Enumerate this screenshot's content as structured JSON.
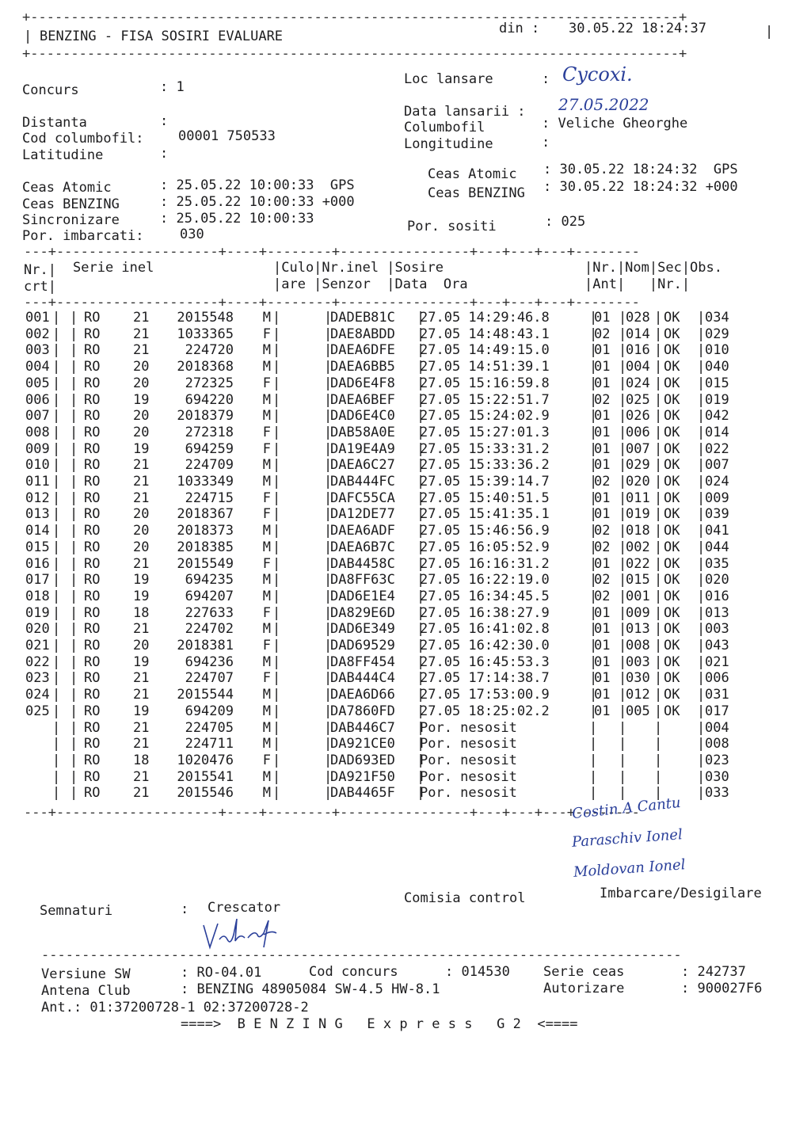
{
  "header": {
    "title": "BENZING - FISA SOSIRI EVALUARE",
    "din_label": "din :",
    "din_value": "30.05.22 18:24:37"
  },
  "info": {
    "concurs_label": "Concurs",
    "concurs_value": ": 1",
    "distanta_label": "Distanta",
    "distanta_value": ":",
    "cod_label": "Cod columbofil:",
    "cod_value": "00001 750533",
    "latitudine_label": "Latitudine",
    "latitudine_value": ":",
    "loc_label": "Loc lansare",
    "loc_colon": ":",
    "loc_value": "Cycoxi.",
    "data_lansarii_label": "Data lansarii :",
    "data_lansarii_value": "27.05.2022",
    "columbofil_label": "Columbofil",
    "columbofil_value": ": Veliche Gheorghe",
    "longitudine_label": "Longitudine",
    "longitudine_value": ":",
    "ceas_atomic_label": "Ceas Atomic",
    "ceas_atomic_value": ": 25.05.22 10:00:33  GPS",
    "ceas_benzing_label": "Ceas BENZING",
    "ceas_benzing_value": ": 25.05.22 10:00:33 +000",
    "sincronizare_label": "Sincronizare",
    "sincronizare_value": ": 25.05.22 10:00:33",
    "imbarcati_label": "Por. imbarcati:",
    "imbarcati_value": "030",
    "r_ceas_atomic_label": "Ceas Atomic",
    "r_ceas_atomic_value": ": 30.05.22 18:24:32  GPS",
    "r_ceas_benzing_label": "Ceas BENZING",
    "r_ceas_benzing_value": ": 30.05.22 18:24:32 +000",
    "sositi_label": "Por. sositi",
    "sositi_value": ": 025"
  },
  "table": {
    "headers": {
      "nr": "Nr.|",
      "crt": "crt|",
      "serie": "Serie inel",
      "culo": "|Culo|Nr.inel |Sosire",
      "are": "|are |Senzor  |Data  Ora",
      "nr_ant": "|Nr.|Nom|Sec|Obs.",
      "ant": "|Ant|   |Nr.|"
    },
    "rows": [
      [
        "001",
        "RO",
        "21",
        "2015548",
        "M",
        "DADEB81C",
        "27.05 14:29:46.8",
        "01",
        "028",
        "OK",
        "034"
      ],
      [
        "002",
        "RO",
        "21",
        "1033365",
        "F",
        "DAE8ABDD",
        "27.05 14:48:43.1",
        "02",
        "014",
        "OK",
        "029"
      ],
      [
        "003",
        "RO",
        "21",
        "224720",
        "M",
        "DAEA6DFE",
        "27.05 14:49:15.0",
        "01",
        "016",
        "OK",
        "010"
      ],
      [
        "004",
        "RO",
        "20",
        "2018368",
        "M",
        "DAEA6BB5",
        "27.05 14:51:39.1",
        "01",
        "004",
        "OK",
        "040"
      ],
      [
        "005",
        "RO",
        "20",
        "272325",
        "F",
        "DAD6E4F8",
        "27.05 15:16:59.8",
        "01",
        "024",
        "OK",
        "015"
      ],
      [
        "006",
        "RO",
        "19",
        "694220",
        "M",
        "DAEA6BEF",
        "27.05 15:22:51.7",
        "02",
        "025",
        "OK",
        "019"
      ],
      [
        "007",
        "RO",
        "20",
        "2018379",
        "M",
        "DAD6E4C0",
        "27.05 15:24:02.9",
        "01",
        "026",
        "OK",
        "042"
      ],
      [
        "008",
        "RO",
        "20",
        "272318",
        "F",
        "DAB58A0E",
        "27.05 15:27:01.3",
        "01",
        "006",
        "OK",
        "014"
      ],
      [
        "009",
        "RO",
        "19",
        "694259",
        "F",
        "DA19E4A9",
        "27.05 15:33:31.2",
        "01",
        "007",
        "OK",
        "022"
      ],
      [
        "010",
        "RO",
        "21",
        "224709",
        "M",
        "DAEA6C27",
        "27.05 15:33:36.2",
        "01",
        "029",
        "OK",
        "007"
      ],
      [
        "011",
        "RO",
        "21",
        "1033349",
        "M",
        "DAB444FC",
        "27.05 15:39:14.7",
        "02",
        "020",
        "OK",
        "024"
      ],
      [
        "012",
        "RO",
        "21",
        "224715",
        "F",
        "DAFC55CA",
        "27.05 15:40:51.5",
        "01",
        "011",
        "OK",
        "009"
      ],
      [
        "013",
        "RO",
        "20",
        "2018367",
        "F",
        "DA12DE77",
        "27.05 15:41:35.1",
        "01",
        "019",
        "OK",
        "039"
      ],
      [
        "014",
        "RO",
        "20",
        "2018373",
        "M",
        "DAEA6ADF",
        "27.05 15:46:56.9",
        "02",
        "018",
        "OK",
        "041"
      ],
      [
        "015",
        "RO",
        "20",
        "2018385",
        "M",
        "DAEA6B7C",
        "27.05 16:05:52.9",
        "02",
        "002",
        "OK",
        "044"
      ],
      [
        "016",
        "RO",
        "21",
        "2015549",
        "F",
        "DAB4458C",
        "27.05 16:16:31.2",
        "01",
        "022",
        "OK",
        "035"
      ],
      [
        "017",
        "RO",
        "19",
        "694235",
        "M",
        "DA8FF63C",
        "27.05 16:22:19.0",
        "02",
        "015",
        "OK",
        "020"
      ],
      [
        "018",
        "RO",
        "19",
        "694207",
        "M",
        "DAD6E1E4",
        "27.05 16:34:45.5",
        "02",
        "001",
        "OK",
        "016"
      ],
      [
        "019",
        "RO",
        "18",
        "227633",
        "F",
        "DA829E6D",
        "27.05 16:38:27.9",
        "01",
        "009",
        "OK",
        "013"
      ],
      [
        "020",
        "RO",
        "21",
        "224702",
        "M",
        "DAD6E349",
        "27.05 16:41:02.8",
        "01",
        "013",
        "OK",
        "003"
      ],
      [
        "021",
        "RO",
        "20",
        "2018381",
        "F",
        "DAD69529",
        "27.05 16:42:30.0",
        "01",
        "008",
        "OK",
        "043"
      ],
      [
        "022",
        "RO",
        "19",
        "694236",
        "M",
        "DA8FF454",
        "27.05 16:45:53.3",
        "01",
        "003",
        "OK",
        "021"
      ],
      [
        "023",
        "RO",
        "21",
        "224707",
        "F",
        "DAB444C4",
        "27.05 17:14:38.7",
        "01",
        "030",
        "OK",
        "006"
      ],
      [
        "024",
        "RO",
        "21",
        "2015544",
        "M",
        "DAEA6D66",
        "27.05 17:53:00.9",
        "01",
        "012",
        "OK",
        "031"
      ],
      [
        "025",
        "RO",
        "19",
        "694209",
        "M",
        "DA7860FD",
        "27.05 18:25:02.2",
        "01",
        "005",
        "OK",
        "017"
      ],
      [
        "",
        "RO",
        "21",
        "224705",
        "M",
        "DAB446C7",
        "Por. nesosit",
        "",
        "",
        "",
        "004"
      ],
      [
        "",
        "RO",
        "21",
        "224711",
        "M",
        "DA921CE0",
        "Por. nesosit",
        "",
        "",
        "",
        "008"
      ],
      [
        "",
        "RO",
        "18",
        "1020476",
        "F",
        "DAD693ED",
        "Por. nesosit",
        "",
        "",
        "",
        "023"
      ],
      [
        "",
        "RO",
        "21",
        "2015541",
        "M",
        "DA921F50",
        "Por. nesosit",
        "",
        "",
        "",
        "030"
      ],
      [
        "",
        "RO",
        "21",
        "2015546",
        "M",
        "DAB4465F",
        "Por. nesosit",
        "",
        "",
        "",
        "033"
      ]
    ]
  },
  "signatures": {
    "semnaturi_label": "Semnaturi",
    "semnaturi_colon": ":",
    "crescator_label": "Crescator",
    "comisia_label": "Comisia control",
    "imbarcare_label": "Imbarcare/Desigilare",
    "handwritten": [
      "Costin A Cantu",
      "Paraschiv Ionel",
      "Moldovan Ionel",
      "Veliche"
    ]
  },
  "footer": {
    "versiune_label": "Versiune SW",
    "versiune_value": ": RO-04.01",
    "cod_concurs_label": "Cod concurs",
    "cod_concurs_value": ": 014530",
    "serie_ceas_label": "Serie ceas",
    "serie_ceas_value": ": 242737",
    "antena_label": "Antena Club",
    "antena_value": ": BENZING 48905084 SW-4.5 HW-8.1",
    "autorizare_label": "Autorizare",
    "autorizare_value": ": 900027F6",
    "ant_line": "Ant.: 01:37200728-1 02:37200728-2",
    "brand_line": "====>  B E N Z I N G   E x p r e s s   G 2  <===="
  },
  "colors": {
    "ink": "#1d1d1f",
    "pen": "#2a3f9a"
  }
}
